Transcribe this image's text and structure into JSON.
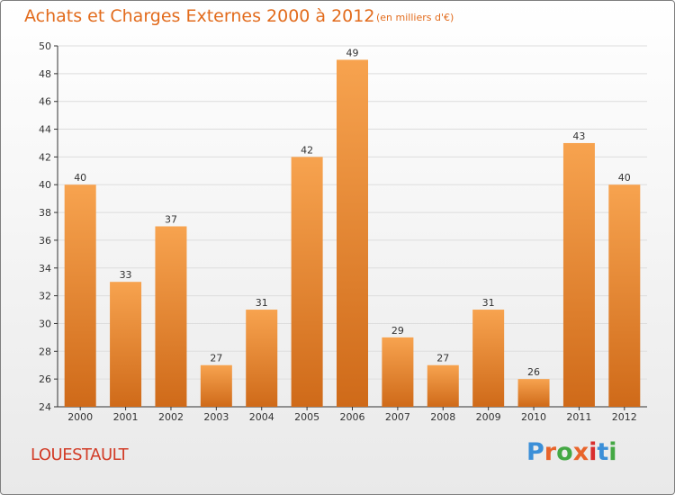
{
  "header": {
    "title": "Achats et Charges Externes 2000 à 2012",
    "subtitle": "(en milliers d'€)"
  },
  "footer": {
    "town": "LOUESTAULT",
    "logo_text": "Proxiti",
    "logo_colors": [
      "#3b8fd8",
      "#e8642b",
      "#44a844",
      "#e8642b",
      "#d92e2e",
      "#3b8fd8",
      "#44a844"
    ]
  },
  "colors": {
    "bar_light": "#f7a34f",
    "bar_dark": "#cf6a19",
    "axis": "#333333",
    "grid": "#dddddd"
  },
  "chart_data": {
    "type": "bar",
    "categories": [
      "2000",
      "2001",
      "2002",
      "2003",
      "2004",
      "2005",
      "2006",
      "2007",
      "2008",
      "2009",
      "2010",
      "2011",
      "2012"
    ],
    "values": [
      40,
      33,
      37,
      27,
      31,
      42,
      49,
      29,
      27,
      31,
      26,
      43,
      40
    ],
    "ylim": [
      24,
      50
    ],
    "yticks": [
      24,
      26,
      28,
      30,
      32,
      34,
      36,
      38,
      40,
      42,
      44,
      46,
      48,
      50
    ],
    "grid": true
  }
}
